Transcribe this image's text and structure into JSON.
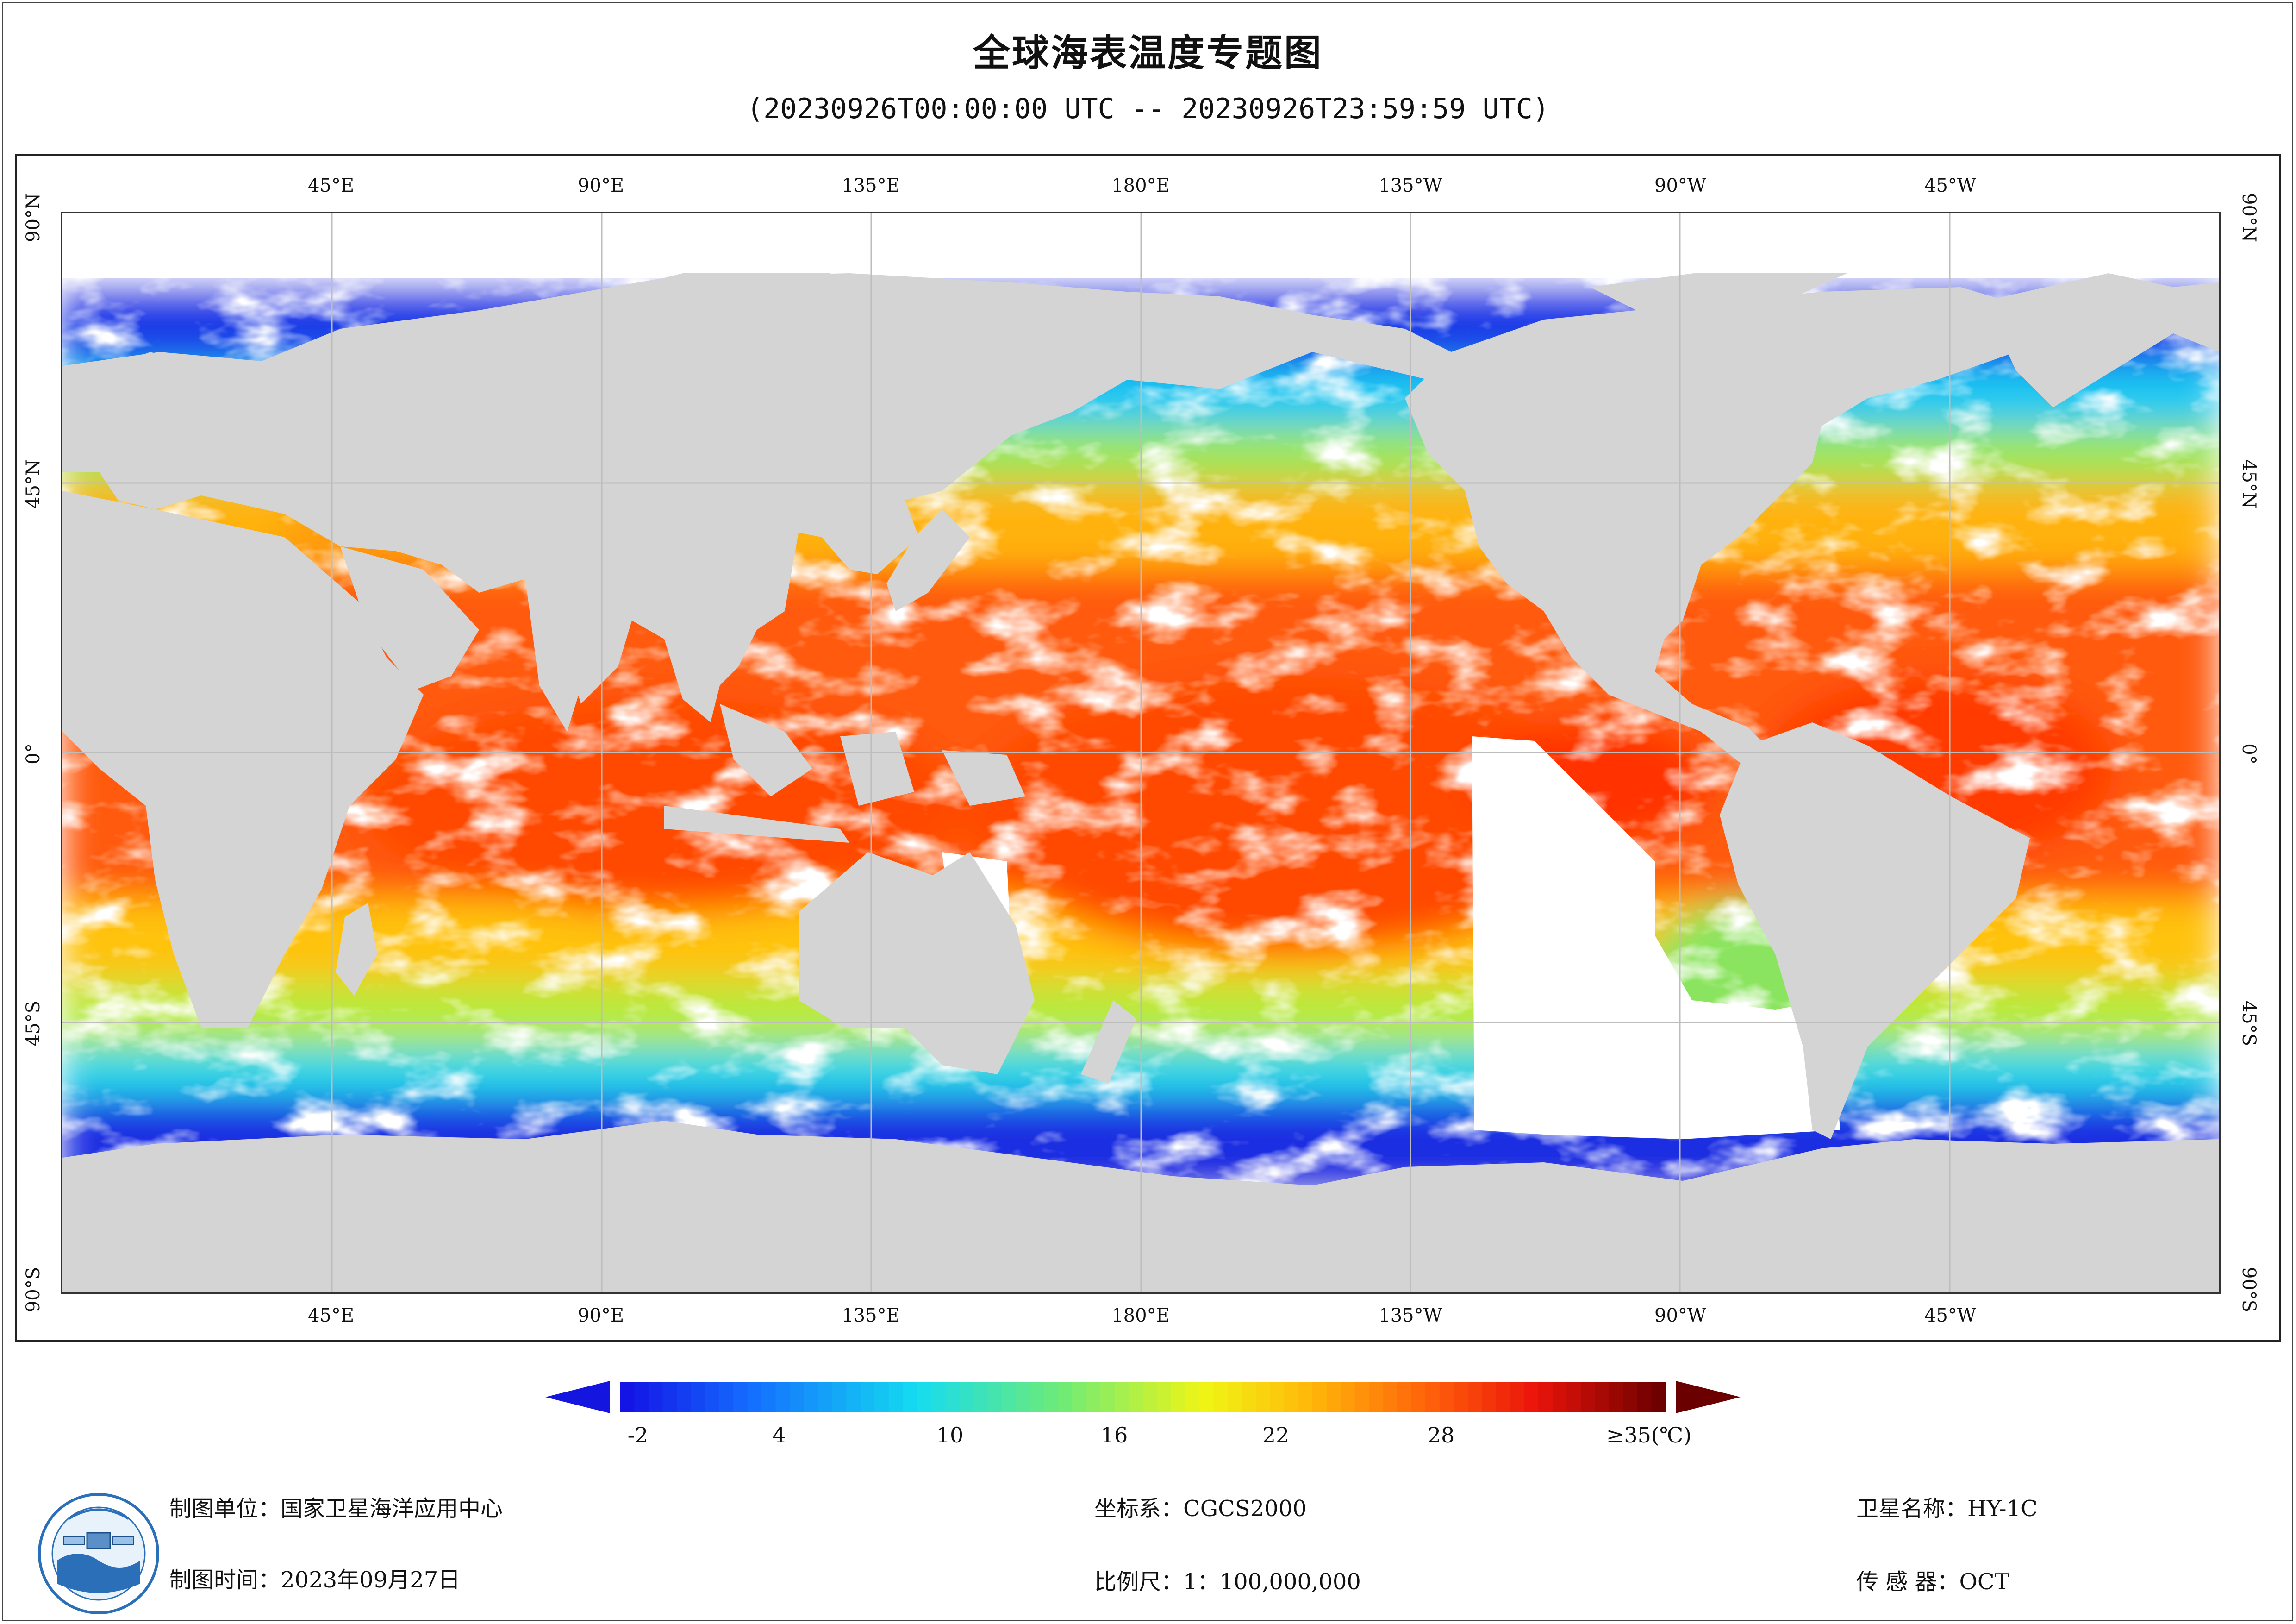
{
  "header": {
    "title": "全球海表温度专题图",
    "subtitle": "(20230926T00:00:00 UTC -- 20230926T23:59:59 UTC)"
  },
  "map": {
    "projection": "equirectangular",
    "lon_range": [
      0,
      360
    ],
    "lat_range": [
      -90,
      90
    ],
    "grid": true,
    "land_color": "#d4d4d4",
    "no_data_color": "#ffffff",
    "lon_ticks": [
      "45°E",
      "90°E",
      "135°E",
      "180°E",
      "135°W",
      "90°W",
      "45°W"
    ],
    "lat_ticks": [
      "90°N",
      "45°N",
      "0°",
      "45°S",
      "90°S"
    ]
  },
  "colorbar": {
    "min_label": "-2",
    "ticks": [
      "-2",
      "4",
      "10",
      "16",
      "22",
      "28"
    ],
    "max_label": "≥35(℃)",
    "range": [
      -2,
      35
    ],
    "under_color": "#1515e0",
    "over_color": "#6b0000"
  },
  "footer": {
    "producer": "制图单位：国家卫星海洋应用中心",
    "date": "制图时间：2023年09月27日",
    "crs": "坐标系：CGCS2000",
    "scale": "比例尺：1：100,000,000",
    "satellite": "卫星名称：HY-1C",
    "sensor": "传 感 器：OCT"
  },
  "logo": {
    "icon": "nsoas-logo-icon"
  }
}
